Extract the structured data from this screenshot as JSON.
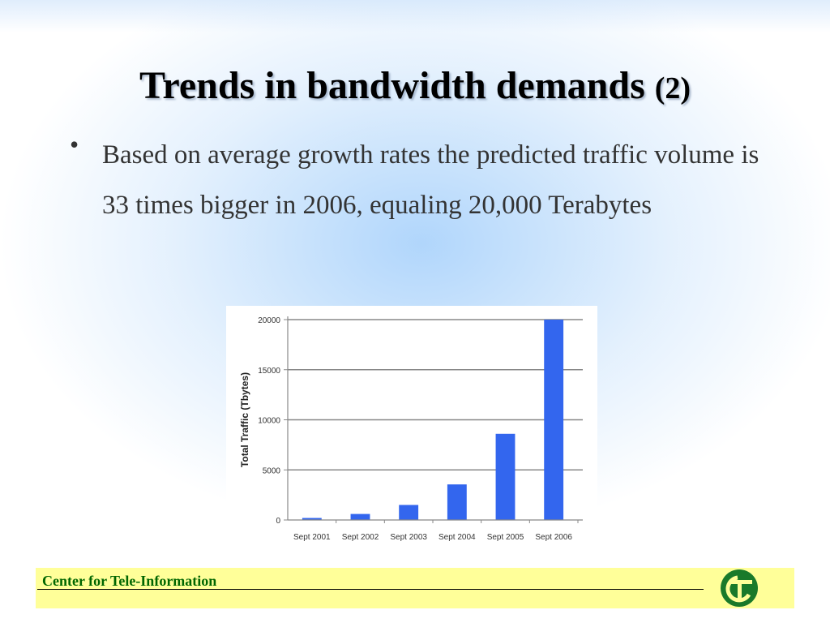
{
  "slide": {
    "title": "Trends in bandwidth demands",
    "title_suffix": "(2)",
    "bullet_symbol": "•",
    "bullet_text": "Based on average growth rates the predicted traffic volume is 33 times bigger in 2006, equaling 20,000 Terabytes",
    "footer_text": "Center for Tele-Information",
    "colors": {
      "bar": "#3366ee",
      "footer_bg": "#ffff99",
      "footer_text": "#006600",
      "logo": "#1a7a2a"
    },
    "logo_icon": "cti-logo-icon"
  },
  "chart_data": {
    "type": "bar",
    "categories": [
      "Sept 2001",
      "Sept 2002",
      "Sept 2003",
      "Sept 2004",
      "Sept 2005",
      "Sept 2006"
    ],
    "values": [
      200,
      600,
      1500,
      3550,
      8600,
      20000
    ],
    "ylabel": "Total Traffic (Tbytes)",
    "xlabel": "",
    "ylim": [
      0,
      20000
    ],
    "yticks": [
      0,
      5000,
      10000,
      15000,
      20000
    ],
    "grid": true
  }
}
